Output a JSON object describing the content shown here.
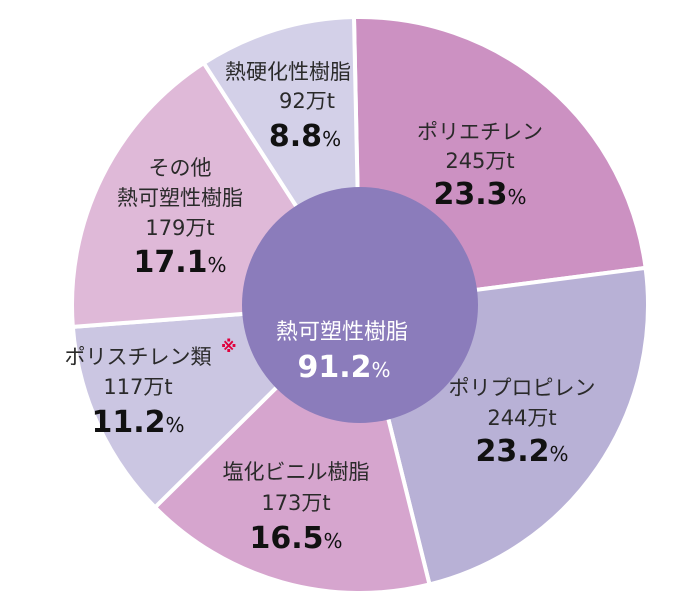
{
  "chart_data": {
    "type": "pie",
    "center": {
      "label": "熱可塑性樹脂",
      "percent_value": "91.2",
      "percent_unit": "%",
      "fraction": 0.912,
      "color": "#8b7cbb"
    },
    "slices": [
      {
        "label": "ポリエチレン",
        "amount": "245万t",
        "percent_value": "23.3",
        "percent_unit": "%",
        "value": 23.3,
        "color": "#cc91c2"
      },
      {
        "label": "ポリプロピレン",
        "amount": "244万t",
        "percent_value": "23.2",
        "percent_unit": "%",
        "value": 23.2,
        "color": "#b8b1d6"
      },
      {
        "label": "塩化ビニル樹脂",
        "amount": "173万t",
        "percent_value": "16.5",
        "percent_unit": "%",
        "value": 16.5,
        "color": "#d6a5ce"
      },
      {
        "label": "ポリスチレン類",
        "note": "※",
        "amount": "117万t",
        "percent_value": "11.2",
        "percent_unit": "%",
        "value": 11.2,
        "color": "#cbc6e2"
      },
      {
        "label_lines": [
          "その他",
          "熱可塑性樹脂"
        ],
        "amount": "179万t",
        "percent_value": "17.1",
        "percent_unit": "%",
        "value": 17.1,
        "color": "#dfb9d8"
      },
      {
        "label": "熱硬化性樹脂",
        "amount": "92万t",
        "percent_value": "8.8",
        "percent_unit": "%",
        "value": 8.8,
        "color": "#d3d0e8"
      }
    ]
  }
}
